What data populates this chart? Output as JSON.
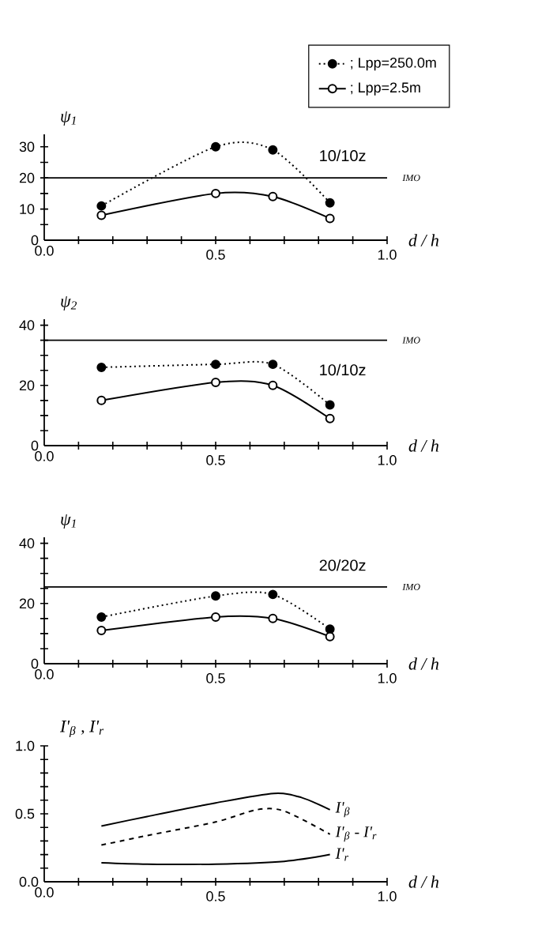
{
  "chart_data": [
    {
      "type": "line",
      "x": [
        0.1667,
        0.5,
        0.6667,
        0.8333
      ],
      "ylabel": "ψ$_{1}$",
      "xlabel": "d / h",
      "marker": "circle",
      "legend": "top right",
      "annotations": [
        "10/10z"
      ],
      "xlim": [
        0,
        1
      ],
      "xticks": [
        {
          "value": 0,
          "label": "0.0"
        },
        {
          "value": 0.1,
          "label": null
        },
        {
          "value": 0.2,
          "label": null
        },
        {
          "value": 0.3,
          "label": null
        },
        {
          "value": 0.4,
          "label": null
        },
        {
          "value": 0.5,
          "label": "0.5"
        },
        {
          "value": 0.6,
          "label": null
        },
        {
          "value": 0.7,
          "label": null
        },
        {
          "value": 0.8,
          "label": null
        },
        {
          "value": 0.9,
          "label": null
        },
        {
          "value": 1,
          "label": "1.0"
        }
      ],
      "ylim": [
        0,
        34
      ],
      "yticks": [
        0,
        {
          "value": 5,
          "label": null
        },
        10,
        {
          "value": 15,
          "label": null
        },
        20,
        {
          "value": 25,
          "label": null
        },
        30
      ],
      "ref_lines": [
        {
          "axis": "y",
          "value": 20,
          "label": "IMO",
          "color": "#000000"
        }
      ],
      "series": [
        {
          "name": "; Lpp=250.0m",
          "color": "#000000",
          "line_style": "dotted",
          "values": [
            11,
            30,
            29,
            12
          ]
        },
        {
          "name": "; Lpp=2.5m",
          "color": "#000000",
          "line_style": "solid",
          "values": [
            8,
            15,
            14,
            7
          ]
        }
      ]
    },
    {
      "type": "line",
      "x": [
        0.1667,
        0.5,
        0.6667,
        0.8333
      ],
      "ylabel": "ψ$_{2}$",
      "xlabel": "d / h",
      "marker": "circle",
      "annotations": [
        "10/10z"
      ],
      "xlim": [
        0,
        1
      ],
      "xticks": [
        {
          "value": 0,
          "label": "0.0"
        },
        {
          "value": 0.1,
          "label": null
        },
        {
          "value": 0.2,
          "label": null
        },
        {
          "value": 0.3,
          "label": null
        },
        {
          "value": 0.4,
          "label": null
        },
        {
          "value": 0.5,
          "label": "0.5"
        },
        {
          "value": 0.6,
          "label": null
        },
        {
          "value": 0.7,
          "label": null
        },
        {
          "value": 0.8,
          "label": null
        },
        {
          "value": 0.9,
          "label": null
        },
        {
          "value": 1,
          "label": "1.0"
        }
      ],
      "ylim": [
        0,
        42
      ],
      "yticks": [
        0,
        {
          "value": 5,
          "label": null
        },
        {
          "value": 10,
          "label": null
        },
        {
          "value": 15,
          "label": null
        },
        20,
        {
          "value": 25,
          "label": null
        },
        {
          "value": 30,
          "label": null
        },
        {
          "value": 35,
          "label": null
        },
        40
      ],
      "ref_lines": [
        {
          "axis": "y",
          "value": 35,
          "label": "IMO",
          "color": "#000000"
        }
      ],
      "series": [
        {
          "color": "#000000",
          "line_style": "dotted",
          "values": [
            26,
            27,
            27,
            13.5
          ]
        },
        {
          "color": "#000000",
          "line_style": "solid",
          "values": [
            15,
            21,
            20,
            9
          ]
        }
      ]
    },
    {
      "type": "line",
      "x": [
        0.1667,
        0.5,
        0.6667,
        0.8333
      ],
      "ylabel": "ψ$_{1}$",
      "xlabel": "d / h",
      "marker": "circle",
      "annotations": [
        "20/20z"
      ],
      "xlim": [
        0,
        1
      ],
      "xticks": [
        {
          "value": 0,
          "label": "0.0"
        },
        {
          "value": 0.1,
          "label": null
        },
        {
          "value": 0.2,
          "label": null
        },
        {
          "value": 0.3,
          "label": null
        },
        {
          "value": 0.4,
          "label": null
        },
        {
          "value": 0.5,
          "label": "0.5"
        },
        {
          "value": 0.6,
          "label": null
        },
        {
          "value": 0.7,
          "label": null
        },
        {
          "value": 0.8,
          "label": null
        },
        {
          "value": 0.9,
          "label": null
        },
        {
          "value": 1,
          "label": "1.0"
        }
      ],
      "ylim": [
        0,
        42
      ],
      "yticks": [
        0,
        {
          "value": 5,
          "label": null
        },
        {
          "value": 10,
          "label": null
        },
        {
          "value": 15,
          "label": null
        },
        20,
        {
          "value": 25,
          "label": null
        },
        {
          "value": 30,
          "label": null
        },
        {
          "value": 35,
          "label": null
        },
        40
      ],
      "ref_lines": [
        {
          "axis": "y",
          "value": 25.5,
          "label": "IMO",
          "color": "#000000"
        }
      ],
      "series": [
        {
          "color": "#000000",
          "line_style": "dotted",
          "values": [
            15.5,
            22.5,
            23,
            11.5
          ]
        },
        {
          "color": "#000000",
          "line_style": "solid",
          "values": [
            11,
            15.5,
            15,
            9
          ]
        }
      ]
    },
    {
      "type": "line",
      "ylabel": "I'$_{β}$ , I'$_{r}$",
      "xlabel": "d / h",
      "xlim": [
        0,
        1
      ],
      "xticks": [
        {
          "value": 0,
          "label": "0.0"
        },
        {
          "value": 0.1,
          "label": null
        },
        {
          "value": 0.2,
          "label": null
        },
        {
          "value": 0.3,
          "label": null
        },
        {
          "value": 0.4,
          "label": null
        },
        {
          "value": 0.5,
          "label": "0.5"
        },
        {
          "value": 0.6,
          "label": null
        },
        {
          "value": 0.7,
          "label": null
        },
        {
          "value": 0.8,
          "label": null
        },
        {
          "value": 0.9,
          "label": null
        },
        {
          "value": 1,
          "label": "1.0"
        }
      ],
      "ylim": [
        0,
        1
      ],
      "yticks": [
        {
          "value": 0,
          "label": "0.0"
        },
        {
          "value": 0.1,
          "label": null
        },
        {
          "value": 0.2,
          "label": null
        },
        {
          "value": 0.3,
          "label": null
        },
        {
          "value": 0.4,
          "label": null
        },
        {
          "value": 0.5,
          "label": "0.5"
        },
        {
          "value": 0.6,
          "label": null
        },
        {
          "value": 0.7,
          "label": null
        },
        {
          "value": 0.8,
          "label": null
        },
        {
          "value": 0.9,
          "label": null
        },
        {
          "value": 1,
          "label": "1.0"
        }
      ],
      "series": [
        {
          "name": "I'$_{β}$",
          "color": "#000000",
          "line_style": "solid",
          "x": [
            0.1667,
            0.3,
            0.5,
            0.67,
            0.75,
            0.8333
          ],
          "values": [
            0.41,
            0.48,
            0.58,
            0.65,
            0.62,
            0.53
          ]
        },
        {
          "name": "I'$_{β}$ - I'$_{r}$",
          "color": "#000000",
          "line_style": "dashed",
          "x": [
            0.1667,
            0.3,
            0.5,
            0.62,
            0.7,
            0.8333
          ],
          "values": [
            0.27,
            0.34,
            0.44,
            0.53,
            0.52,
            0.35
          ]
        },
        {
          "name": "I'$_{r}$",
          "color": "#000000",
          "line_style": "solid",
          "x": [
            0.1667,
            0.3,
            0.5,
            0.7,
            0.8333
          ],
          "values": [
            0.14,
            0.13,
            0.13,
            0.15,
            0.2
          ]
        }
      ]
    }
  ]
}
